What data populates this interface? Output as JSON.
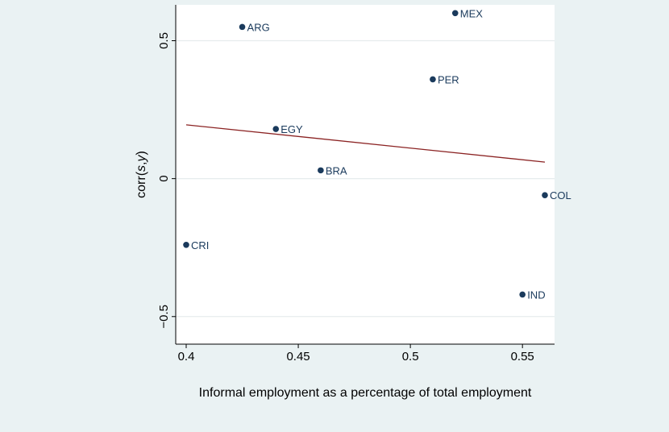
{
  "colors": {
    "background": "#eaf2f3",
    "plot_region": "#ffffff",
    "points": "#1a3a5c",
    "labels": "#1a3a5c",
    "fit_line": "#8b2323",
    "gridline": "#e6eced",
    "axis": "#000000"
  },
  "chart_data": {
    "type": "scatter",
    "title": "",
    "xlabel": "Informal employment as a percentage of total employment",
    "ylabel_parts": [
      "corr(",
      "s",
      ",",
      "y",
      ")"
    ],
    "xlim": [
      0.4,
      0.56
    ],
    "ylim": [
      -0.6,
      0.63
    ],
    "xticks": [
      0.4,
      0.45,
      0.5,
      0.55
    ],
    "xtick_labels": [
      "0.4",
      "0.45",
      "0.5",
      "0.55"
    ],
    "yticks": [
      -0.5,
      0,
      0.5
    ],
    "ytick_labels": [
      "−0.5",
      "0",
      "0.5"
    ],
    "grid": "horizontal",
    "points": [
      {
        "label": "ARG",
        "x": 0.425,
        "y": 0.55
      },
      {
        "label": "MEX",
        "x": 0.52,
        "y": 0.6
      },
      {
        "label": "PER",
        "x": 0.51,
        "y": 0.36
      },
      {
        "label": "EGY",
        "x": 0.44,
        "y": 0.18
      },
      {
        "label": "BRA",
        "x": 0.46,
        "y": 0.03
      },
      {
        "label": "COL",
        "x": 0.56,
        "y": -0.06
      },
      {
        "label": "CRI",
        "x": 0.4,
        "y": -0.24
      },
      {
        "label": "IND",
        "x": 0.55,
        "y": -0.42
      }
    ],
    "fit_line": {
      "x": [
        0.4,
        0.56
      ],
      "y": [
        0.195,
        0.06
      ]
    }
  }
}
